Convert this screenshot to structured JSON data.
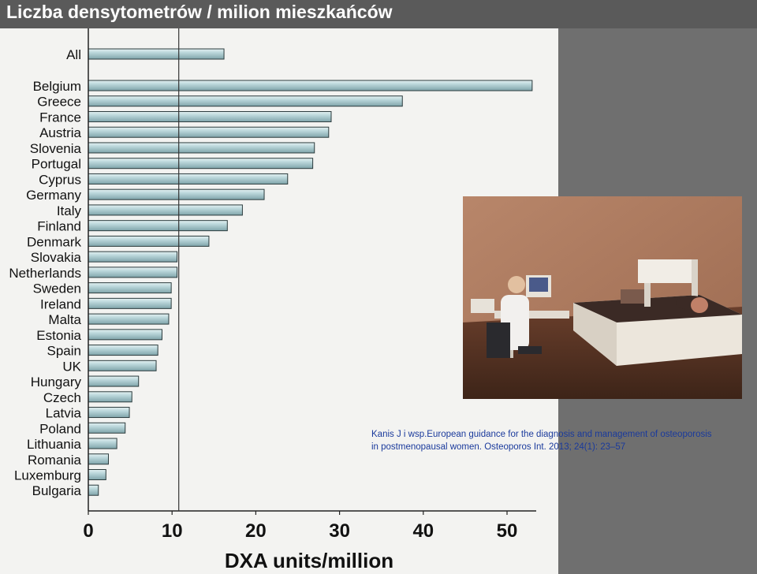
{
  "slide": {
    "title": "Liczba densytometrów / milion mieszkańców"
  },
  "citation": {
    "line1": "Kanis J i wsp.European guidance for the diagnosis and management of osteoporosis",
    "line2": "in postmenopausal women. Osteoporos Int. 2013; 24(1): 23–57"
  },
  "photo": {
    "icon": "dxa-scanner-photo"
  },
  "colors": {
    "background": "#6f6f6f",
    "title_bar": "#5a5a5a",
    "chart_panel": "#f3f3f1",
    "bar_fill": "#a8c8cc",
    "bar_highlight": "#e4f1f2",
    "bar_stroke": "#2b3b3d",
    "citation_text": "#1a3a9c"
  },
  "chart_data": {
    "type": "bar",
    "orientation": "horizontal",
    "title": "",
    "xlabel": "DXA units/million",
    "ylabel": "",
    "xlim": [
      0,
      55
    ],
    "xticks": [
      0,
      10,
      20,
      30,
      40,
      50
    ],
    "reference_line": 10.8,
    "grid": false,
    "legend": "none",
    "categories": [
      "All",
      "Belgium",
      "Greece",
      "France",
      "Austria",
      "Slovenia",
      "Portugal",
      "Cyprus",
      "Germany",
      "Italy",
      "Finland",
      "Denmark",
      "Slovakia",
      "Netherlands",
      "Sweden",
      "Ireland",
      "Malta",
      "Estonia",
      "Spain",
      "UK",
      "Hungary",
      "Czech",
      "Latvia",
      "Poland",
      "Lithuania",
      "Romania",
      "Luxemburg",
      "Bulgaria"
    ],
    "values": [
      16.2,
      53.0,
      37.5,
      29.0,
      28.7,
      27.0,
      26.8,
      23.8,
      21.0,
      18.4,
      16.6,
      14.4,
      10.6,
      10.6,
      9.9,
      9.9,
      9.6,
      8.8,
      8.3,
      8.1,
      6.0,
      5.2,
      4.9,
      4.4,
      3.4,
      2.4,
      2.1,
      1.2
    ]
  }
}
